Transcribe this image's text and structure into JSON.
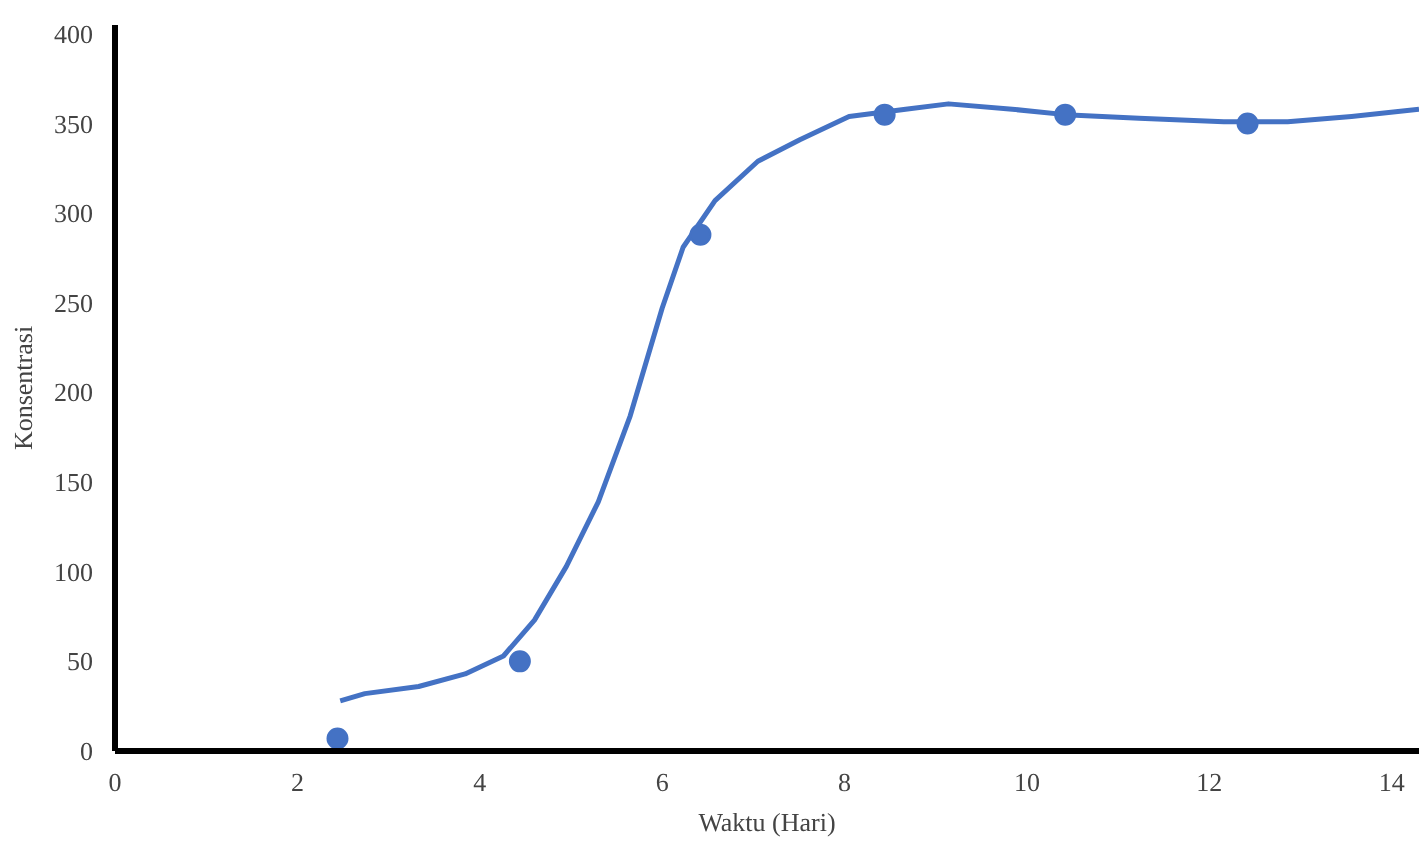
{
  "chart_data": {
    "type": "line",
    "xlabel": "Waktu (Hari)",
    "ylabel": "Konsentrasi",
    "xlim": [
      0,
      14.3
    ],
    "ylim": [
      0,
      405
    ],
    "xticks": [
      0,
      2,
      4,
      6,
      8,
      10,
      12,
      14
    ],
    "yticks": [
      0,
      50,
      100,
      150,
      200,
      250,
      300,
      350,
      400
    ],
    "grid": false,
    "series": [
      {
        "color": "#4472c4",
        "marker": "none",
        "line_style": "solid",
        "x": [
          2.47,
          2.74,
          3.33,
          3.84,
          4.26,
          4.6,
          4.95,
          5.3,
          5.65,
          6.0,
          6.23,
          6.58,
          7.05,
          7.51,
          8.05,
          8.67,
          9.14,
          9.84,
          10.42,
          11.23,
          12.16,
          12.86,
          13.56,
          14.3
        ],
        "values": [
          28,
          32,
          36,
          43,
          53,
          73,
          103,
          139,
          187,
          247,
          281,
          307,
          329,
          341,
          354,
          358,
          361,
          358,
          355,
          353,
          351,
          351,
          354,
          358
        ]
      },
      {
        "type": "scatter",
        "color": "#4472c4",
        "marker": "circle",
        "x": [
          2.44,
          4.44,
          6.42,
          8.44,
          10.42,
          12.42
        ],
        "values": [
          7,
          50,
          288,
          355,
          355,
          350
        ]
      }
    ]
  }
}
